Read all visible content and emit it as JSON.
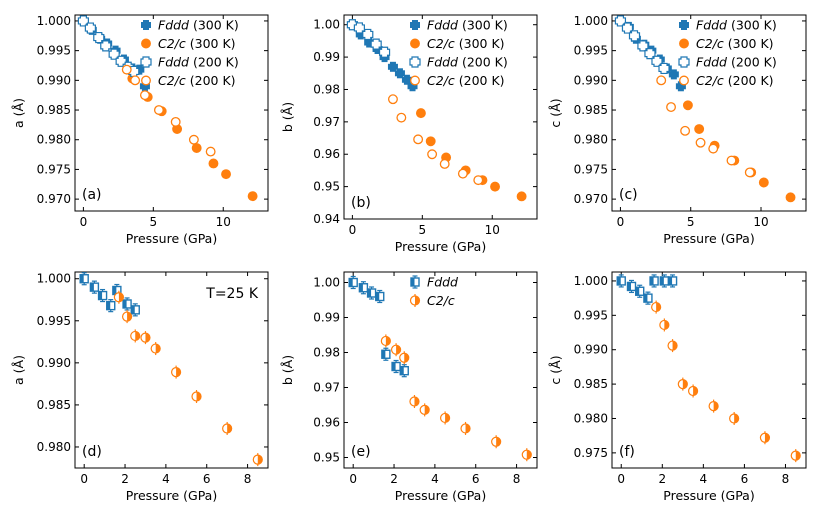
{
  "figure": {
    "colors": {
      "fddd": "#1f77b4",
      "c2c": "#ff7f0e",
      "axis": "#000000"
    }
  },
  "chart_data": [
    {
      "id": "a",
      "type": "scatter",
      "panel_label": "(a)",
      "xlabel": "Pressure (GPa)",
      "ylabel": "a (Å)",
      "xlim": [
        -0.6,
        13.2
      ],
      "ylim": [
        0.968,
        1.001
      ],
      "xticks": [
        0,
        5,
        10
      ],
      "xtick_labels": [
        "0",
        "5",
        "10"
      ],
      "yticks": [
        0.97,
        0.975,
        0.98,
        0.985,
        0.99,
        0.995,
        1.0
      ],
      "ytick_labels": [
        "0.970",
        "0.975",
        "0.980",
        "0.985",
        "0.990",
        "0.995",
        "1.000"
      ],
      "legend": {
        "position": "top-right",
        "entries": [
          {
            "phase": "Fddd",
            "temp": " (300 K)",
            "series": "Fddd 300 K"
          },
          {
            "phase": "C2/c",
            "temp": " (300 K)",
            "series": "C2/c 300 K"
          },
          {
            "phase": "Fddd",
            "temp": " (200 K)",
            "series": "Fddd 200 K"
          },
          {
            "phase": "C2/c",
            "temp": " (200 K)",
            "series": "C2/c 200 K"
          }
        ]
      },
      "series": [
        {
          "name": "Fddd 300 K",
          "phase": "fddd",
          "filled": true,
          "marker": "plus",
          "x": [
            0,
            0.6,
            1.2,
            1.7,
            2.3,
            2.9,
            3.5,
            4.0,
            4.4
          ],
          "y": [
            1.0,
            0.9985,
            0.997,
            0.9962,
            0.995,
            0.9935,
            0.992,
            0.9918,
            0.989
          ]
        },
        {
          "name": "C2/c 300 K",
          "phase": "c2c",
          "filled": true,
          "marker": "circle",
          "x": [
            3.5,
            4.6,
            5.6,
            6.7,
            8.1,
            9.3,
            10.2,
            12.1
          ],
          "y": [
            0.9903,
            0.9872,
            0.9848,
            0.9818,
            0.9786,
            0.976,
            0.9742,
            0.9705
          ]
        },
        {
          "name": "Fddd 200 K",
          "phase": "fddd",
          "filled": false,
          "marker": "plus",
          "x": [
            0,
            0.5,
            1.1,
            1.6,
            2.2,
            2.7,
            3.2,
            3.6
          ],
          "y": [
            1.0,
            0.9988,
            0.9972,
            0.9958,
            0.9944,
            0.9932,
            0.9922,
            0.9915
          ]
        },
        {
          "name": "C2/c 200 K",
          "phase": "c2c",
          "filled": false,
          "marker": "circle",
          "x": [
            3.1,
            3.7,
            4.4,
            5.4,
            6.6,
            7.9,
            9.1
          ],
          "y": [
            0.9918,
            0.99,
            0.9875,
            0.985,
            0.983,
            0.98,
            0.978
          ]
        }
      ]
    },
    {
      "id": "b",
      "type": "scatter",
      "panel_label": "(b)",
      "xlabel": "Pressure (GPa)",
      "ylabel": "b (Å)",
      "xlim": [
        -0.6,
        13.2
      ],
      "ylim": [
        0.94,
        1.003
      ],
      "xticks": [
        0,
        5,
        10
      ],
      "xtick_labels": [
        "0",
        "5",
        "10"
      ],
      "yticks": [
        0.94,
        0.95,
        0.96,
        0.97,
        0.98,
        0.99,
        1.0
      ],
      "ytick_labels": [
        "0.94",
        "0.95",
        "0.96",
        "0.97",
        "0.98",
        "0.99",
        "1.00"
      ],
      "legend": {
        "position": "top-right",
        "entries": [
          {
            "phase": "Fddd",
            "temp": " (300 K)",
            "series": "Fddd 300 K"
          },
          {
            "phase": "C2/c",
            "temp": " (300 K)",
            "series": "C2/c 300 K"
          },
          {
            "phase": "Fddd",
            "temp": " (200 K)",
            "series": "Fddd 200 K"
          },
          {
            "phase": "C2/c",
            "temp": " (200 K)",
            "series": "C2/c 200 K"
          }
        ]
      },
      "series": [
        {
          "name": "Fddd 300 K",
          "phase": "fddd",
          "filled": true,
          "marker": "plus",
          "x": [
            0,
            0.6,
            1.2,
            1.8,
            2.3,
            2.9,
            3.4,
            3.9,
            4.3
          ],
          "y": [
            1.0,
            0.997,
            0.9945,
            0.9925,
            0.99,
            0.987,
            0.985,
            0.983,
            0.981
          ]
        },
        {
          "name": "C2/c 300 K",
          "phase": "c2c",
          "filled": true,
          "marker": "circle",
          "x": [
            4.9,
            5.6,
            6.7,
            8.1,
            9.3,
            10.2,
            12.1
          ],
          "y": [
            0.9727,
            0.964,
            0.959,
            0.955,
            0.952,
            0.95,
            0.947
          ]
        },
        {
          "name": "Fddd 200 K",
          "phase": "fddd",
          "filled": false,
          "marker": "plus",
          "x": [
            0,
            0.5,
            1.1,
            1.7,
            2.3
          ],
          "y": [
            1.0,
            0.999,
            0.997,
            0.994,
            0.9915
          ]
        },
        {
          "name": "C2/c 200 K",
          "phase": "c2c",
          "filled": false,
          "marker": "circle",
          "x": [
            2.9,
            3.5,
            4.7,
            5.7,
            6.6,
            7.9,
            9.0
          ],
          "y": [
            0.977,
            0.9713,
            0.9646,
            0.96,
            0.957,
            0.954,
            0.952
          ]
        }
      ]
    },
    {
      "id": "c",
      "type": "scatter",
      "panel_label": "(c)",
      "xlabel": "Pressure (GPa)",
      "ylabel": "c (Å)",
      "xlim": [
        -0.6,
        13.2
      ],
      "ylim": [
        0.968,
        1.001
      ],
      "xticks": [
        0,
        5,
        10
      ],
      "xtick_labels": [
        "0",
        "5",
        "10"
      ],
      "yticks": [
        0.97,
        0.975,
        0.98,
        0.985,
        0.99,
        0.995,
        1.0
      ],
      "ytick_labels": [
        "0.970",
        "0.975",
        "0.980",
        "0.985",
        "0.990",
        "0.995",
        "1.000"
      ],
      "legend": {
        "position": "top-right",
        "entries": [
          {
            "phase": "Fddd",
            "temp": " (300 K)",
            "series": "Fddd 300 K"
          },
          {
            "phase": "C2/c",
            "temp": " (300 K)",
            "series": "C2/c 300 K"
          },
          {
            "phase": "Fddd",
            "temp": " (200 K)",
            "series": "Fddd 200 K"
          },
          {
            "phase": "C2/c",
            "temp": " (200 K)",
            "series": "C2/c 200 K"
          }
        ]
      },
      "series": [
        {
          "name": "Fddd 300 K",
          "phase": "fddd",
          "filled": true,
          "marker": "plus",
          "x": [
            0,
            0.6,
            1.1,
            1.7,
            2.2,
            2.8,
            3.3,
            3.8,
            4.3
          ],
          "y": [
            1.0,
            0.999,
            0.997,
            0.996,
            0.995,
            0.9935,
            0.992,
            0.991,
            0.989
          ]
        },
        {
          "name": "C2/c 300 K",
          "phase": "c2c",
          "filled": true,
          "marker": "circle",
          "x": [
            4.8,
            5.6,
            6.7,
            8.1,
            9.3,
            10.2,
            12.1
          ],
          "y": [
            0.9858,
            0.9818,
            0.979,
            0.9765,
            0.9745,
            0.9728,
            0.9703
          ]
        },
        {
          "name": "Fddd 200 K",
          "phase": "fddd",
          "filled": false,
          "marker": "plus",
          "x": [
            0,
            0.5,
            1.0,
            1.6,
            2.1,
            2.6,
            3.1
          ],
          "y": [
            1.0,
            0.9988,
            0.9975,
            0.9958,
            0.9945,
            0.9932,
            0.992
          ]
        },
        {
          "name": "C2/c 200 K",
          "phase": "c2c",
          "filled": false,
          "marker": "circle",
          "x": [
            2.9,
            3.6,
            4.6,
            5.7,
            6.6,
            7.9,
            9.2
          ],
          "y": [
            0.99,
            0.9855,
            0.9815,
            0.9795,
            0.9785,
            0.9765,
            0.9745
          ]
        }
      ]
    },
    {
      "id": "d",
      "type": "scatter",
      "panel_label": "(d)",
      "annotation": "T=25 K",
      "xlabel": "Pressure (GPa)",
      "ylabel": "a (Å)",
      "xlim": [
        -0.45,
        9.0
      ],
      "ylim": [
        0.9775,
        1.0008
      ],
      "xticks": [
        0,
        2,
        4,
        6,
        8
      ],
      "xtick_labels": [
        "0",
        "2",
        "4",
        "6",
        "8"
      ],
      "yticks": [
        0.98,
        0.985,
        0.99,
        0.995,
        1.0
      ],
      "ytick_labels": [
        "0.980",
        "0.985",
        "0.990",
        "0.995",
        "1.000"
      ],
      "legend": null,
      "series": [
        {
          "name": "Fddd",
          "phase": "fddd",
          "filled": false,
          "marker": "square-err",
          "x": [
            0,
            0.5,
            0.9,
            1.3,
            1.6,
            2.1,
            2.5
          ],
          "y": [
            1.0,
            0.999,
            0.998,
            0.9968,
            0.9986,
            0.997,
            0.9963
          ]
        },
        {
          "name": "C2/c",
          "phase": "c2c",
          "filled": true,
          "marker": "half-circle",
          "x": [
            1.7,
            2.1,
            2.5,
            3.0,
            3.5,
            4.5,
            5.5,
            7.0,
            8.5
          ],
          "y": [
            0.9978,
            0.9955,
            0.9932,
            0.993,
            0.9917,
            0.9889,
            0.986,
            0.9822,
            0.9785
          ]
        }
      ]
    },
    {
      "id": "e",
      "type": "scatter",
      "panel_label": "(e)",
      "xlabel": "Pressure (GPa)",
      "ylabel": "b (Å)",
      "xlim": [
        -0.45,
        9.0
      ],
      "ylim": [
        0.947,
        1.003
      ],
      "xticks": [
        0,
        2,
        4,
        6,
        8
      ],
      "xtick_labels": [
        "0",
        "2",
        "4",
        "6",
        "8"
      ],
      "yticks": [
        0.95,
        0.96,
        0.97,
        0.98,
        0.99,
        1.0
      ],
      "ytick_labels": [
        "0.95",
        "0.96",
        "0.97",
        "0.98",
        "0.99",
        "1.00"
      ],
      "legend": {
        "position": "top-right",
        "entries": [
          {
            "phase": "Fddd",
            "temp": "",
            "series": "Fddd"
          },
          {
            "phase": "C2/c",
            "temp": "",
            "series": "C2/c"
          }
        ]
      },
      "series": [
        {
          "name": "Fddd",
          "phase": "fddd",
          "filled": false,
          "marker": "square-err",
          "x": [
            0,
            0.5,
            0.9,
            1.3,
            1.6,
            2.1,
            2.5
          ],
          "y": [
            1.0,
            0.9985,
            0.997,
            0.996,
            0.9795,
            0.976,
            0.9748
          ]
        },
        {
          "name": "C2/c",
          "phase": "c2c",
          "filled": true,
          "marker": "half-circle",
          "x": [
            1.6,
            2.1,
            2.5,
            3.0,
            3.5,
            4.5,
            5.5,
            7.0,
            8.5
          ],
          "y": [
            0.9833,
            0.9808,
            0.9785,
            0.966,
            0.9636,
            0.9613,
            0.9583,
            0.9545,
            0.9508
          ]
        }
      ]
    },
    {
      "id": "f",
      "type": "scatter",
      "panel_label": "(f)",
      "xlabel": "Pressure (GPa)",
      "ylabel": "c (Å)",
      "xlim": [
        -0.45,
        9.0
      ],
      "ylim": [
        0.9728,
        1.0013
      ],
      "xticks": [
        0,
        2,
        4,
        6,
        8
      ],
      "xtick_labels": [
        "0",
        "2",
        "4",
        "6",
        "8"
      ],
      "yticks": [
        0.975,
        0.98,
        0.985,
        0.99,
        0.995,
        1.0
      ],
      "ytick_labels": [
        "0.975",
        "0.980",
        "0.985",
        "0.990",
        "0.995",
        "1.000"
      ],
      "legend": null,
      "series": [
        {
          "name": "Fddd",
          "phase": "fddd",
          "filled": false,
          "marker": "square-err",
          "x": [
            0,
            0.5,
            0.9,
            1.3,
            1.6,
            2.1,
            2.5
          ],
          "y": [
            1.0,
            0.9992,
            0.9985,
            0.9975,
            1.0,
            1.0,
            1.0
          ]
        },
        {
          "name": "C2/c",
          "phase": "c2c",
          "filled": true,
          "marker": "half-circle",
          "x": [
            1.7,
            2.1,
            2.5,
            3.0,
            3.5,
            4.5,
            5.5,
            7.0,
            8.5
          ],
          "y": [
            0.9962,
            0.9936,
            0.9906,
            0.985,
            0.984,
            0.9818,
            0.98,
            0.9772,
            0.9746
          ]
        }
      ]
    }
  ]
}
